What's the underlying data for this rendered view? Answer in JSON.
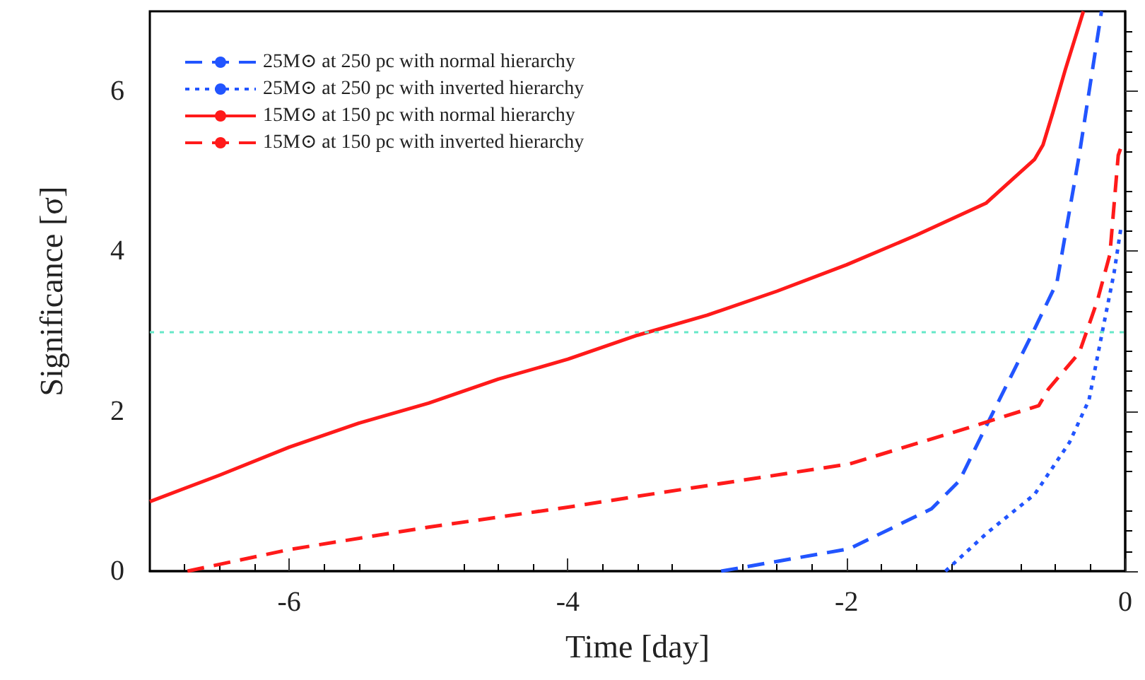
{
  "chart_data": {
    "type": "line",
    "xlabel": "Time [day]",
    "ylabel": "Significance [σ]",
    "xlim": [
      -7,
      0
    ],
    "xticks": [
      -6,
      -4,
      -2,
      0
    ],
    "ylim": [
      0,
      7
    ],
    "yticks": [
      0,
      2,
      4,
      6
    ],
    "grid": false,
    "legend": "top left",
    "marker": "none",
    "ref_lines": [
      {
        "axis": "y",
        "value": 3,
        "color": "#66e8c8",
        "line_style": "dotted"
      }
    ],
    "series": [
      {
        "name": "25M⊙ at 250 pc with normal hierarchy",
        "color": "#2255ff",
        "line_style": "dashed",
        "x": [
          -2.9,
          -1.98,
          -1.39,
          -1.19,
          -0.99,
          -0.65,
          -0.49,
          -0.33,
          -0.17
        ],
        "values": [
          0,
          0.28,
          0.78,
          1.13,
          1.84,
          3.03,
          3.61,
          5.2,
          7.0
        ]
      },
      {
        "name": "25M⊙ at 250 pc with inverted hierarchy",
        "color": "#2255ff",
        "line_style": "dotted",
        "x": [
          -1.29,
          -0.99,
          -0.65,
          -0.4,
          -0.26,
          -0.16,
          -0.08,
          -0.03
        ],
        "values": [
          0,
          0.48,
          0.96,
          1.61,
          2.14,
          3.03,
          3.73,
          4.3
        ]
      },
      {
        "name": "15M⊙ at 150 pc with normal hierarchy",
        "color": "#ff1a1a",
        "line_style": "solid",
        "x": [
          -7,
          -6.5,
          -6,
          -5.5,
          -5,
          -4.5,
          -4,
          -3.5,
          -3,
          -2.5,
          -2,
          -1.5,
          -1,
          -0.65,
          -0.59,
          -0.52,
          -0.43,
          -0.3
        ],
        "values": [
          0.87,
          1.2,
          1.55,
          1.85,
          2.1,
          2.4,
          2.65,
          2.95,
          3.2,
          3.5,
          3.83,
          4.2,
          4.6,
          5.15,
          5.33,
          5.73,
          6.27,
          7.0
        ]
      },
      {
        "name": "15M⊙ at 150 pc with inverted hierarchy",
        "color": "#ff1a1a",
        "line_style": "dashed",
        "x": [
          -6.73,
          -6,
          -5,
          -4,
          -3.3,
          -1.98,
          -1.15,
          -0.62,
          -0.55,
          -0.33,
          -0.2,
          -0.11,
          -0.05,
          -0.03
        ],
        "values": [
          0,
          0.27,
          0.55,
          0.8,
          0.99,
          1.34,
          1.78,
          2.07,
          2.28,
          2.73,
          3.38,
          3.96,
          5.2,
          5.3
        ]
      }
    ]
  }
}
